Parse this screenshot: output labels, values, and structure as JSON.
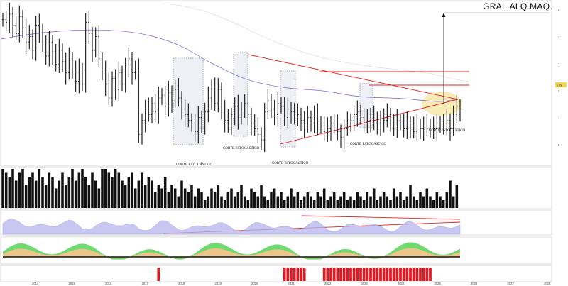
{
  "window": {
    "ticker": "GRAL.ALQ.MAQ."
  },
  "legends": {
    "price": "",
    "volume": "",
    "rsi": "",
    "stoch": "",
    "signal": ""
  },
  "colors": {
    "bars": "#111111",
    "ma_blue": "#6a6ad6",
    "ma_faint": "#d9c9c9",
    "trend_red": "#e8201f",
    "highlight": "#f3e7a6",
    "box": "#ededf4",
    "rsi_fill": "#b5b5ee",
    "stoch_green": "#5fd65f",
    "stoch_orange": "#f1c48a",
    "signal_red": "#e01a22"
  },
  "chart_data": {
    "type": "bar",
    "annotations": [
      "CORTE ESTOCÁSTICO",
      "CORTE ESTOCÁSTICO",
      "CORTE ESTOCÁSTICO",
      "CORTE ESTOCÁSTICO"
    ],
    "x_ticks": [
      "2014",
      "2015",
      "2016",
      "2017",
      "2018",
      "2019",
      "2020",
      "2021",
      "2022",
      "2023",
      "2024",
      "2025",
      "2026",
      "2027",
      "2028"
    ],
    "y_ticks_price": [
      "5",
      "4",
      "3",
      "2",
      "1",
      "0"
    ],
    "last_price_label": "1,43",
    "series_close": [
      4.7,
      4.6,
      4.9,
      4.5,
      4.2,
      4.8,
      4.4,
      3.9,
      4.1,
      3.6,
      4.5,
      4.3,
      3.8,
      3.4,
      3.9,
      3.5,
      3.1,
      3.6,
      3.2,
      2.8,
      3.3,
      2.9,
      2.5,
      2.9,
      2.4,
      4.6,
      4.2,
      3.6,
      4.1,
      3.3,
      2.9,
      2.4,
      1.9,
      2.6,
      2.2,
      2.8,
      2.4,
      3.0,
      3.3,
      2.8,
      2.9,
      0.6,
      1.1,
      1.5,
      1.3,
      1.7,
      1.4,
      1.9,
      2.0,
      1.6,
      2.1,
      1.8,
      2.2,
      1.9,
      1.5,
      1.3,
      1.1,
      1.0,
      0.7,
      1.2,
      0.9,
      1.4,
      1.9,
      2.3,
      1.7,
      2.2,
      1.5,
      1.1,
      0.9,
      1.3,
      1.6,
      1.2,
      1.5,
      1.7,
      1.3,
      1.0,
      0.8,
      0.6,
      0.4,
      1.4,
      1.8,
      1.5,
      1.3,
      1.7,
      1.6,
      1.2,
      1.5,
      1.4,
      1.2,
      1.3,
      1.1,
      0.9,
      1.2,
      1.0,
      1.3,
      1.0,
      0.9,
      0.7,
      0.8,
      1.0,
      0.9,
      0.7,
      0.5,
      0.8,
      1.0,
      1.1,
      1.3,
      1.4,
      1.2,
      1.0,
      1.1,
      1.3,
      1.0,
      0.9,
      1.2,
      1.1,
      1.3,
      1.0,
      0.9,
      1.1,
      1.0,
      0.8,
      1.0,
      0.9,
      0.7,
      0.9,
      0.8,
      0.9,
      0.8,
      0.9,
      0.8,
      0.9,
      1.0,
      0.9,
      1.1,
      0.8,
      1.3,
      1.6,
      1.43
    ],
    "volume": [
      1.0,
      0.9,
      0.8,
      1.0,
      0.7,
      0.9,
      1.0,
      0.6,
      0.8,
      0.9,
      0.7,
      1.0,
      0.8,
      0.6,
      0.9,
      0.8,
      0.5,
      0.7,
      0.9,
      0.6,
      0.8,
      1.0,
      0.7,
      0.9,
      1.0,
      0.8,
      0.6,
      0.9,
      0.7,
      0.5,
      1.0,
      1.0,
      0.9,
      0.8,
      1.0,
      0.9,
      0.7,
      0.6,
      0.8,
      0.9,
      0.5,
      0.7,
      0.9,
      0.6,
      0.8,
      0.7,
      0.4,
      0.6,
      0.5,
      0.8,
      0.4,
      0.6,
      0.5,
      0.3,
      0.7,
      0.5,
      0.4,
      0.6,
      0.3,
      0.5,
      0.4,
      0.2,
      0.3,
      0.5,
      0.4,
      0.6,
      0.3,
      0.2,
      0.4,
      0.5,
      0.3,
      0.4,
      0.6,
      0.3,
      0.2,
      0.5,
      0.4,
      0.3,
      0.6,
      0.3,
      0.2,
      0.4,
      0.5,
      0.3,
      0.4,
      0.2,
      0.3,
      0.5,
      0.3,
      0.4,
      0.2,
      0.3,
      0.4,
      0.3,
      0.2,
      0.4,
      0.3,
      0.5,
      0.2,
      0.3,
      0.4,
      0.2,
      0.3,
      0.4,
      0.2,
      0.3,
      0.2,
      0.4,
      0.3,
      0.2,
      0.4,
      0.3,
      0.5,
      0.2,
      0.3,
      0.4,
      0.3,
      0.2,
      0.5,
      0.3,
      0.4,
      0.2,
      0.3,
      0.6,
      0.3,
      0.2,
      0.4,
      0.3,
      0.5,
      0.3,
      0.2,
      0.4,
      0.3,
      0.2,
      0.4,
      0.7,
      0.3,
      0.6
    ],
    "signal_red_bars": [
      47,
      85,
      86,
      87,
      88,
      89,
      90,
      91,
      97,
      98,
      99,
      100,
      101,
      102,
      103,
      104,
      105,
      106,
      107,
      108,
      109,
      110,
      111,
      112,
      113,
      114,
      115,
      116,
      117,
      118,
      119,
      120,
      121,
      122,
      123,
      124,
      125,
      126,
      127,
      128,
      129
    ]
  }
}
